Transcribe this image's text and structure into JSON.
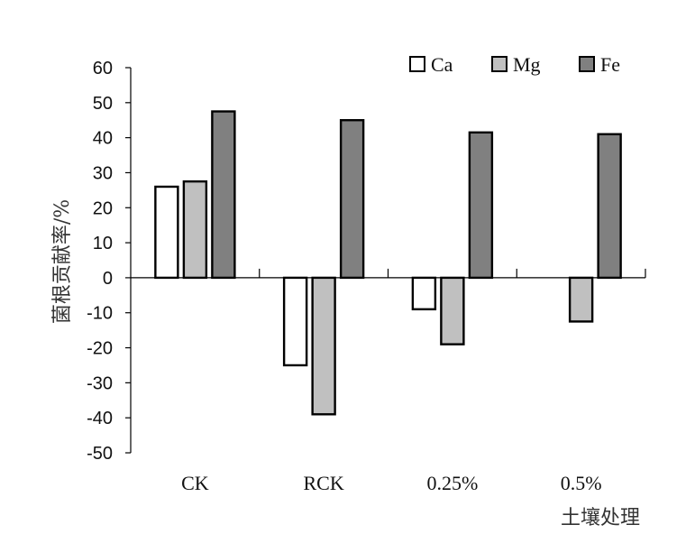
{
  "chart_data": {
    "type": "bar",
    "title": "",
    "xlabel": "土壤处理",
    "ylabel": "菌根贡献率/%",
    "categories": [
      "CK",
      "RCK",
      "0.25%",
      "0.5%"
    ],
    "series": [
      {
        "name": "Ca",
        "color": "#ffffff",
        "values": [
          26,
          -25,
          -9,
          0
        ]
      },
      {
        "name": "Mg",
        "color": "#c0c0c0",
        "values": [
          27.5,
          -39,
          -19,
          -12.5
        ]
      },
      {
        "name": "Fe",
        "color": "#808080",
        "values": [
          47.5,
          45,
          41.5,
          41
        ]
      }
    ],
    "ylim": [
      -50,
      60
    ],
    "yticks": [
      60,
      50,
      40,
      30,
      20,
      10,
      0,
      -10,
      -20,
      -30,
      -40,
      -50
    ],
    "grid": false,
    "legend_position": "top-right"
  }
}
